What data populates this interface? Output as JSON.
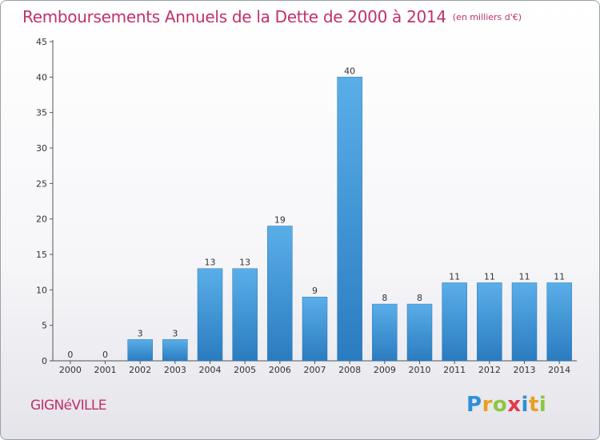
{
  "chart_data": {
    "type": "bar",
    "title": "Remboursements Annuels de la Dette de 2000 à 2014",
    "subtitle": "(en milliers d'€)",
    "categories": [
      "2000",
      "2001",
      "2002",
      "2003",
      "2004",
      "2005",
      "2006",
      "2007",
      "2008",
      "2009",
      "2010",
      "2011",
      "2012",
      "2013",
      "2014"
    ],
    "values": [
      0,
      0,
      3,
      3,
      13,
      13,
      19,
      9,
      40,
      8,
      8,
      11,
      11,
      11,
      11
    ],
    "ylim": [
      0,
      45
    ],
    "yticks": [
      0,
      5,
      10,
      15,
      20,
      25,
      30,
      35,
      40,
      45
    ],
    "grid": false,
    "legend": "none",
    "bar_color": "#3f97d6"
  },
  "footer": {
    "commune": "GIGNéVILLE",
    "logo_letters": [
      "P",
      "r",
      "o",
      "x",
      "i",
      "t",
      "i"
    ],
    "logo_colors": [
      "#2d8fd8",
      "#e8a020",
      "#8cc63f",
      "#e23a4c",
      "#2d8fd8",
      "#e8a020",
      "#8cc63f"
    ]
  }
}
